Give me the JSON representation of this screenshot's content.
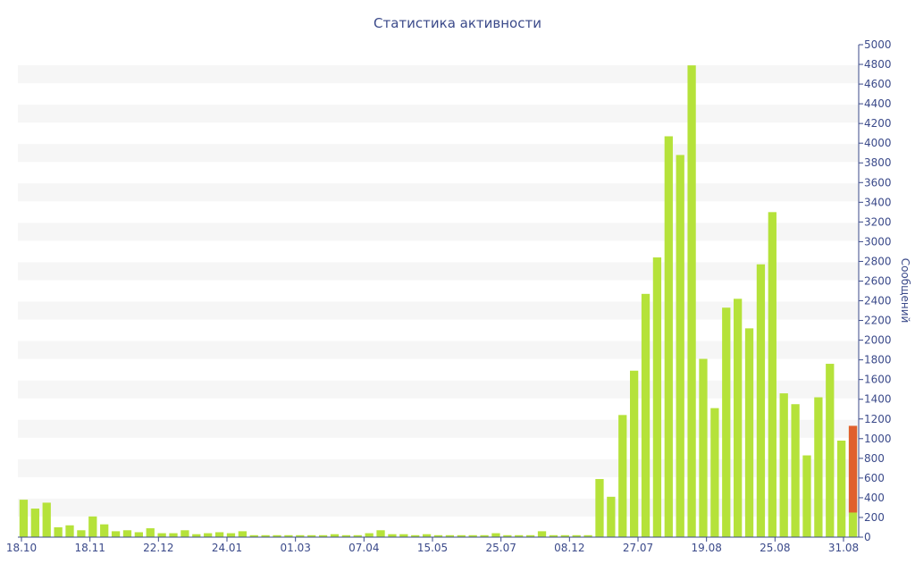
{
  "chart_data": {
    "type": "bar",
    "title": "Статистика активности",
    "ylabel": "Сообщений",
    "ylim": [
      0,
      5000
    ],
    "y_ticks": [
      0,
      200,
      400,
      600,
      800,
      1000,
      1200,
      1400,
      1600,
      1800,
      2000,
      2200,
      2400,
      2600,
      2800,
      3000,
      3200,
      3400,
      3600,
      3800,
      4000,
      4200,
      4400,
      4600,
      4800,
      5000
    ],
    "y_axis_position": "right",
    "grid": "horizontal alternating bands",
    "x_ticks": [
      "18.10",
      "18.11",
      "22.12",
      "24.01",
      "01.03",
      "07.04",
      "15.05",
      "25.07",
      "08.12",
      "27.07",
      "19.08",
      "25.08",
      "31.08"
    ],
    "colors": {
      "bar": "#b5e23a",
      "highlight": "#e0602d",
      "axis_text": "#3b4a8a",
      "band": "#f6f6f6"
    },
    "values": [
      380,
      290,
      350,
      100,
      120,
      70,
      210,
      130,
      60,
      70,
      50,
      90,
      40,
      40,
      70,
      30,
      40,
      50,
      40,
      60,
      20,
      20,
      20,
      20,
      20,
      20,
      20,
      30,
      20,
      20,
      40,
      70,
      30,
      30,
      20,
      30,
      20,
      20,
      20,
      20,
      20,
      40,
      20,
      20,
      20,
      60,
      20,
      20,
      20,
      20,
      590,
      410,
      1240,
      1690,
      2470,
      2840,
      4070,
      3880,
      4790,
      1810,
      1310,
      2330,
      2420,
      2120,
      2770,
      3300,
      1460,
      1350,
      830,
      1420,
      1760,
      980,
      1130
    ],
    "highlight_index": 72,
    "highlight_range": [
      250,
      1130
    ]
  }
}
